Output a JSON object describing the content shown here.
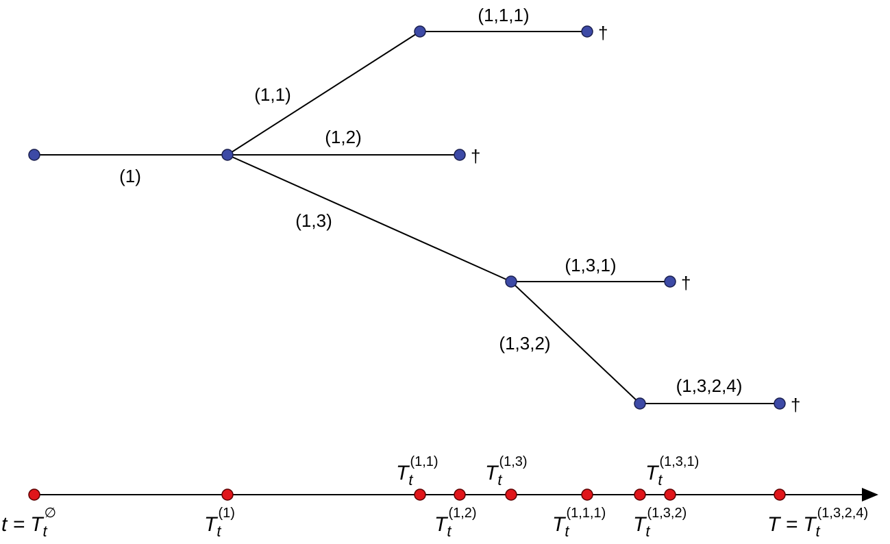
{
  "tree": {
    "edges": [
      {
        "label": "(1)"
      },
      {
        "label": "(1,1)"
      },
      {
        "label": "(1,1,1)",
        "end_mark": "†"
      },
      {
        "label": "(1,2)",
        "end_mark": "†"
      },
      {
        "label": "(1,3)"
      },
      {
        "label": "(1,3,1)",
        "end_mark": "†"
      },
      {
        "label": "(1,3,2)"
      },
      {
        "label": "(1,3,2,4)",
        "end_mark": "†"
      }
    ]
  },
  "timeline": {
    "labels": [
      {
        "prefix": "t =",
        "symbol": "T",
        "sub": "t",
        "sup": "∅"
      },
      {
        "symbol": "T",
        "sub": "t",
        "sup": "(1)"
      },
      {
        "symbol": "T",
        "sub": "t",
        "sup": "(1,1)"
      },
      {
        "symbol": "T",
        "sub": "t",
        "sup": "(1,2)"
      },
      {
        "symbol": "T",
        "sub": "t",
        "sup": "(1,3)"
      },
      {
        "symbol": "T",
        "sub": "t",
        "sup": "(1,1,1)"
      },
      {
        "symbol": "T",
        "sub": "t",
        "sup": "(1,3,1)"
      },
      {
        "symbol": "T",
        "sub": "t",
        "sup": "(1,3,2)"
      },
      {
        "prefix": "T =",
        "symbol": "T",
        "sub": "t",
        "sup": "(1,3,2,4)"
      }
    ]
  }
}
